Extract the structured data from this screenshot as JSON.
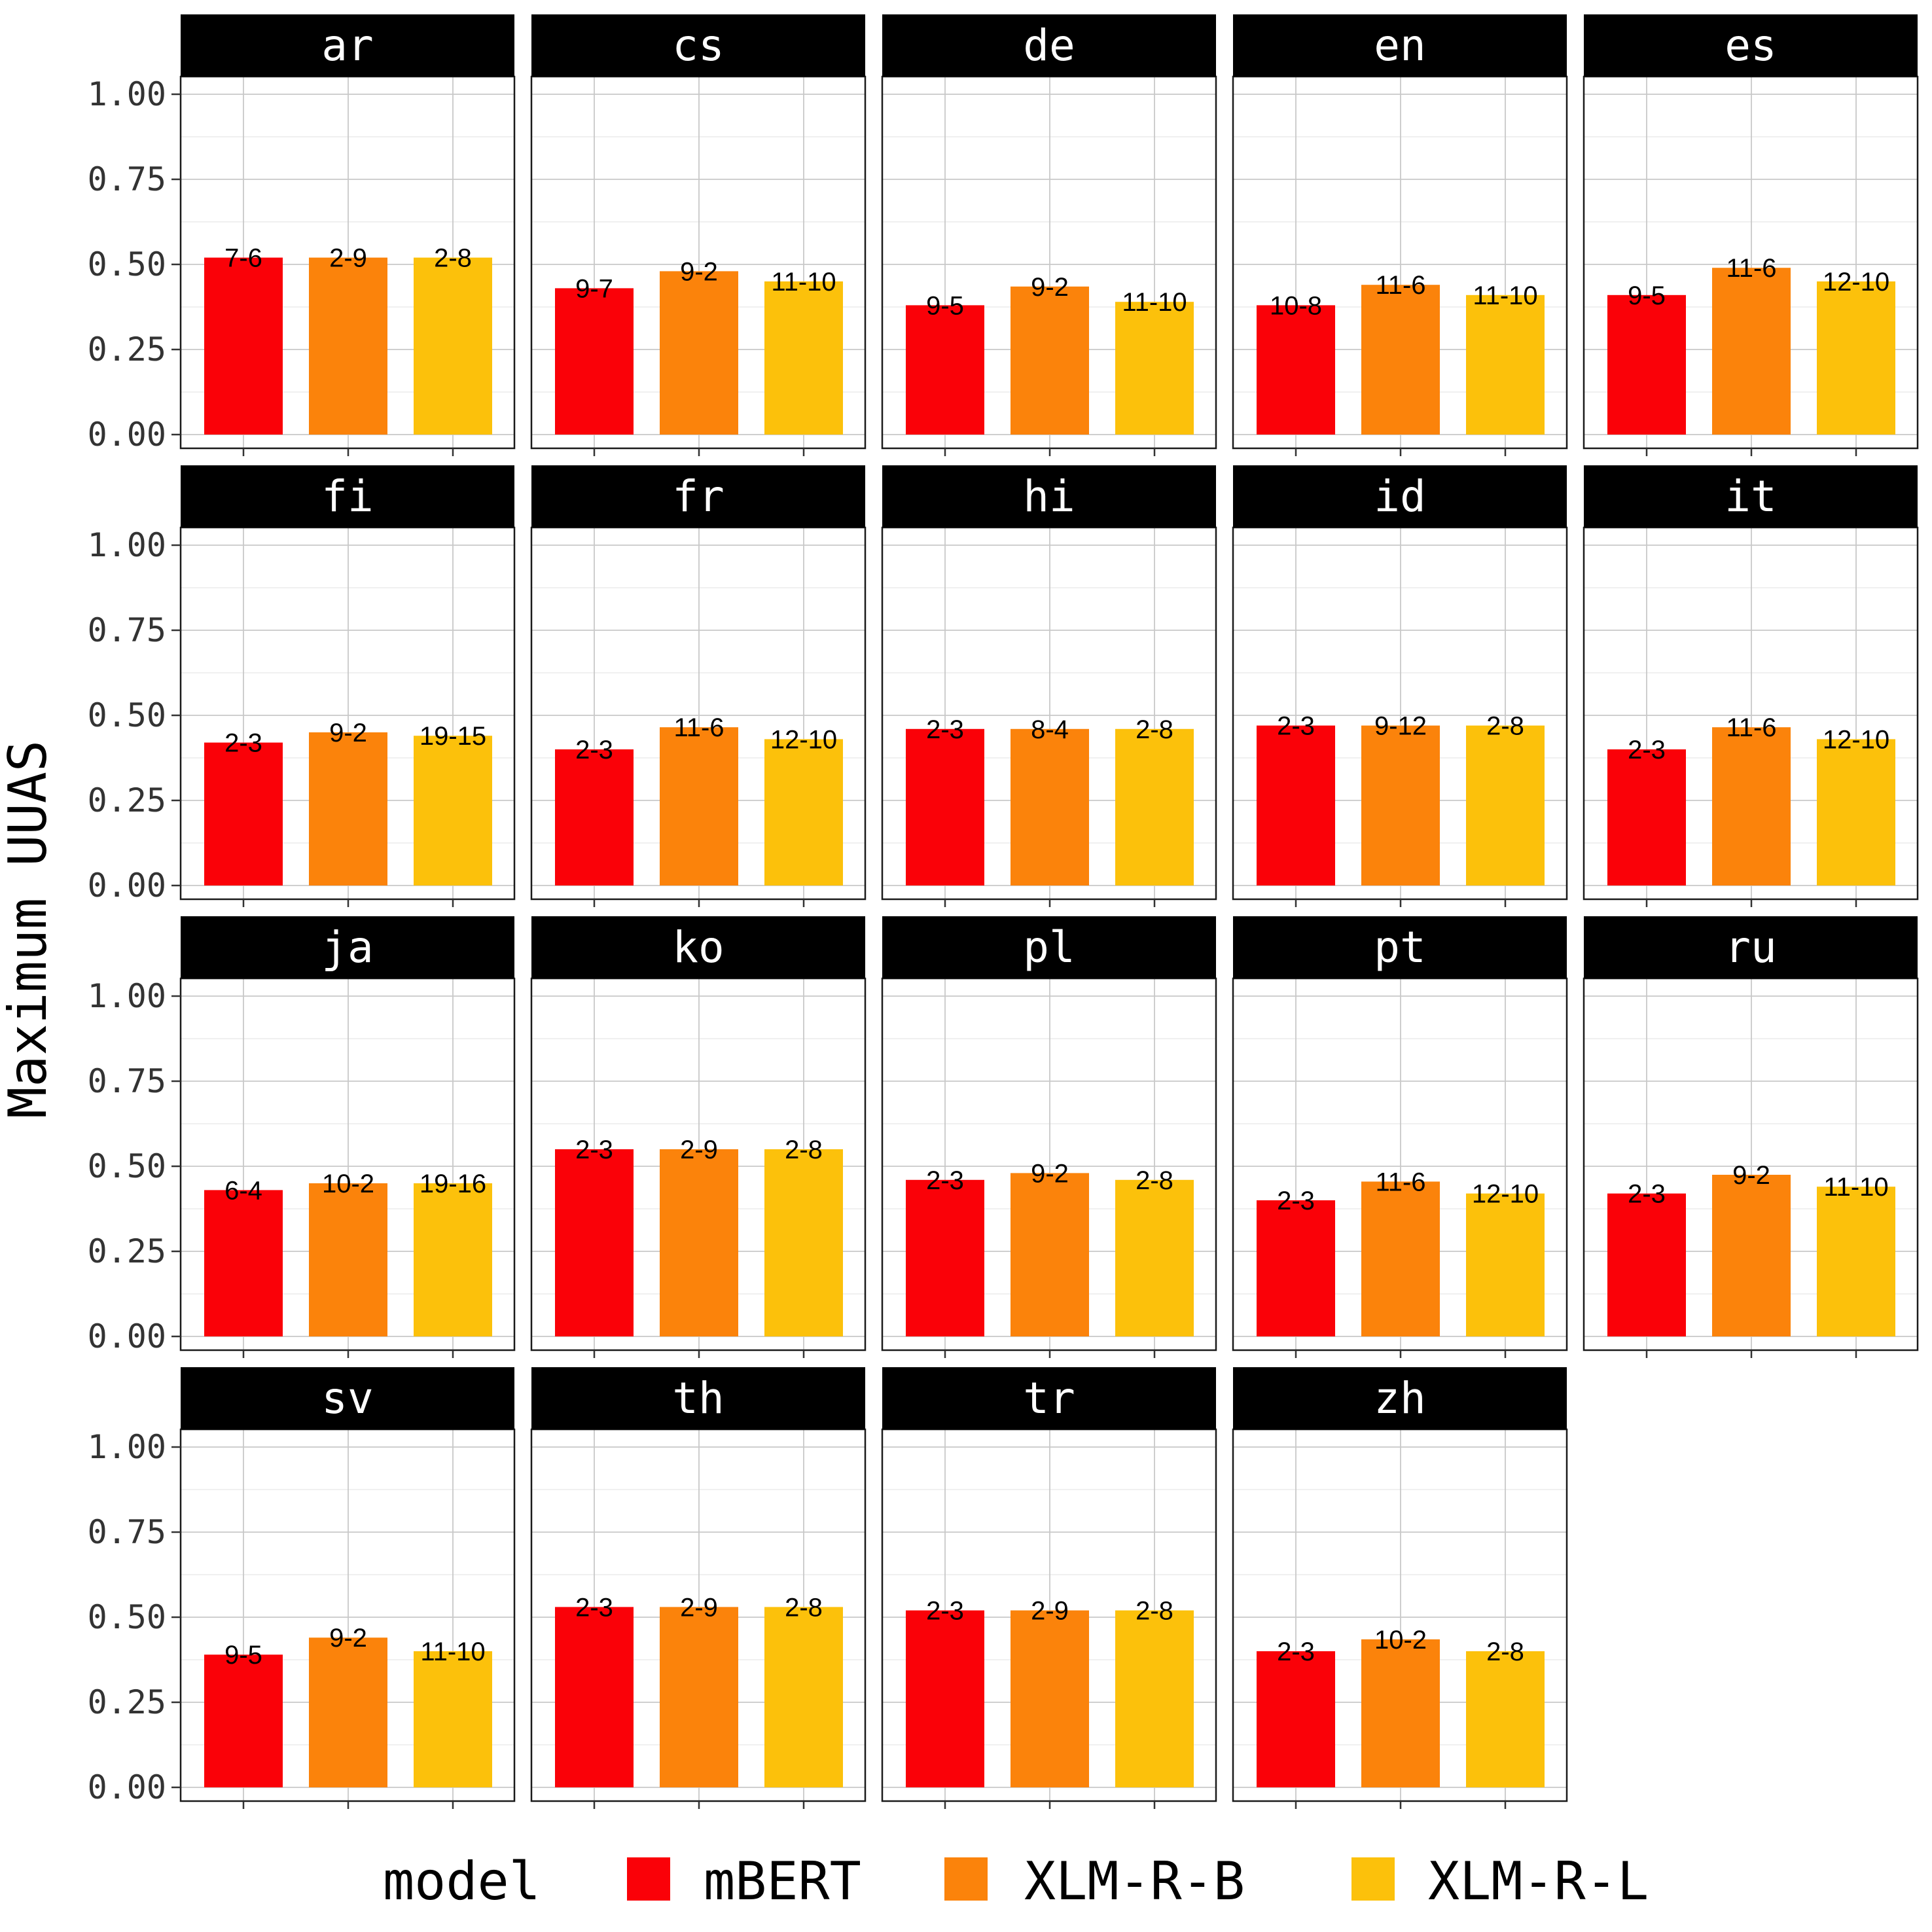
{
  "chart_data": {
    "type": "bar",
    "facet_by": "language",
    "ylabel": "Maximum UUAS",
    "ylim": [
      0,
      1.2
    ],
    "yticks": [
      "0.00",
      "0.25",
      "0.50",
      "0.75",
      "1.00"
    ],
    "grid": true,
    "legend": {
      "title": "model",
      "position": "bottom",
      "entries": [
        {
          "label": "mBERT",
          "color": "#fa0108"
        },
        {
          "label": "XLM-R-B",
          "color": "#fb830b"
        },
        {
          "label": "XLM-R-L",
          "color": "#fcc10b"
        }
      ]
    },
    "categories": [
      "mBERT",
      "XLM-R-B",
      "XLM-R-L"
    ],
    "panels": [
      {
        "title": "ar",
        "values": [
          0.52,
          0.52,
          0.52
        ],
        "labels": [
          "7-6",
          "2-9",
          "2-8"
        ]
      },
      {
        "title": "cs",
        "values": [
          0.43,
          0.48,
          0.45
        ],
        "labels": [
          "9-7",
          "9-2",
          "11-10"
        ]
      },
      {
        "title": "de",
        "values": [
          0.38,
          0.435,
          0.39
        ],
        "labels": [
          "9-5",
          "9-2",
          "11-10"
        ]
      },
      {
        "title": "en",
        "values": [
          0.38,
          0.44,
          0.41
        ],
        "labels": [
          "10-8",
          "11-6",
          "11-10"
        ]
      },
      {
        "title": "es",
        "values": [
          0.41,
          0.49,
          0.45
        ],
        "labels": [
          "9-5",
          "11-6",
          "12-10"
        ]
      },
      {
        "title": "fi",
        "values": [
          0.42,
          0.45,
          0.44
        ],
        "labels": [
          "2-3",
          "9-2",
          "19-15"
        ]
      },
      {
        "title": "fr",
        "values": [
          0.4,
          0.465,
          0.43
        ],
        "labels": [
          "2-3",
          "11-6",
          "12-10"
        ]
      },
      {
        "title": "hi",
        "values": [
          0.46,
          0.46,
          0.46
        ],
        "labels": [
          "2-3",
          "8-4",
          "2-8"
        ]
      },
      {
        "title": "id",
        "values": [
          0.47,
          0.47,
          0.47
        ],
        "labels": [
          "2-3",
          "9-12",
          "2-8"
        ]
      },
      {
        "title": "it",
        "values": [
          0.4,
          0.465,
          0.43
        ],
        "labels": [
          "2-3",
          "11-6",
          "12-10"
        ]
      },
      {
        "title": "ja",
        "values": [
          0.43,
          0.45,
          0.45
        ],
        "labels": [
          "6-4",
          "10-2",
          "19-16"
        ]
      },
      {
        "title": "ko",
        "values": [
          0.55,
          0.55,
          0.55
        ],
        "labels": [
          "2-3",
          "2-9",
          "2-8"
        ]
      },
      {
        "title": "pl",
        "values": [
          0.46,
          0.48,
          0.46
        ],
        "labels": [
          "2-3",
          "9-2",
          "2-8"
        ]
      },
      {
        "title": "pt",
        "values": [
          0.4,
          0.455,
          0.42
        ],
        "labels": [
          "2-3",
          "11-6",
          "12-10"
        ]
      },
      {
        "title": "ru",
        "values": [
          0.42,
          0.475,
          0.44
        ],
        "labels": [
          "2-3",
          "9-2",
          "11-10"
        ]
      },
      {
        "title": "sv",
        "values": [
          0.39,
          0.44,
          0.4
        ],
        "labels": [
          "9-5",
          "9-2",
          "11-10"
        ]
      },
      {
        "title": "th",
        "values": [
          0.53,
          0.53,
          0.53
        ],
        "labels": [
          "2-3",
          "2-9",
          "2-8"
        ]
      },
      {
        "title": "tr",
        "values": [
          0.52,
          0.52,
          0.52
        ],
        "labels": [
          "2-3",
          "2-9",
          "2-8"
        ]
      },
      {
        "title": "zh",
        "values": [
          0.4,
          0.435,
          0.4
        ],
        "labels": [
          "2-3",
          "10-2",
          "2-8"
        ]
      }
    ]
  }
}
